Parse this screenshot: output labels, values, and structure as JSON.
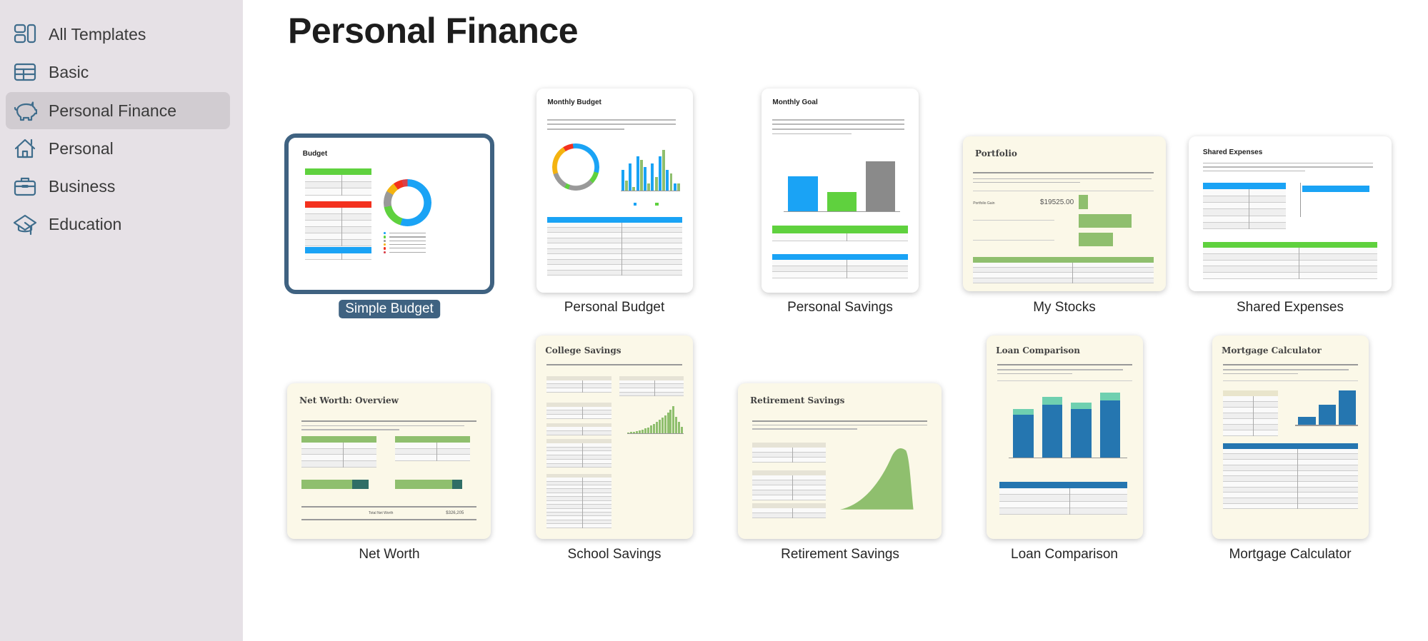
{
  "sidebar": {
    "items": [
      {
        "label": "All Templates",
        "icon": "grid-icon",
        "selected": false
      },
      {
        "label": "Basic",
        "icon": "table-icon",
        "selected": false
      },
      {
        "label": "Personal Finance",
        "icon": "piggy-bank-icon",
        "selected": true
      },
      {
        "label": "Personal",
        "icon": "house-icon",
        "selected": false
      },
      {
        "label": "Business",
        "icon": "briefcase-icon",
        "selected": false
      },
      {
        "label": "Education",
        "icon": "graduation-cap-icon",
        "selected": false
      }
    ],
    "icon_color": "#3f6d8c"
  },
  "main": {
    "title": "Personal Finance",
    "accent_color": "#3f6281",
    "templates": [
      {
        "label": "Simple Budget",
        "thumb_title": "Budget",
        "kind": "budget",
        "theme": "white",
        "selected": true
      },
      {
        "label": "Personal Budget",
        "thumb_title": "Monthly Budget",
        "kind": "monthly",
        "theme": "white",
        "selected": false
      },
      {
        "label": "Personal Savings",
        "thumb_title": "Monthly Goal",
        "kind": "goal",
        "theme": "white",
        "selected": false
      },
      {
        "label": "My Stocks",
        "thumb_title": "Portfolio",
        "kind": "portfolio",
        "theme": "cream",
        "selected": false,
        "value": "$19525.00"
      },
      {
        "label": "Shared Expenses",
        "thumb_title": "Shared Expenses",
        "kind": "shared",
        "theme": "white",
        "selected": false
      },
      {
        "label": "Net Worth",
        "thumb_title": "Net Worth: Overview",
        "kind": "networth",
        "theme": "cream",
        "selected": false,
        "total_label": "Total Net Worth",
        "value": "$326,205"
      },
      {
        "label": "School Savings",
        "thumb_title": "College Savings",
        "kind": "college",
        "theme": "cream",
        "selected": false
      },
      {
        "label": "Retirement Savings",
        "thumb_title": "Retirement Savings",
        "kind": "retirement",
        "theme": "cream",
        "selected": false
      },
      {
        "label": "Loan Comparison",
        "thumb_title": "Loan Comparison",
        "kind": "loan",
        "theme": "cream",
        "selected": false
      },
      {
        "label": "Mortgage Calculator",
        "thumb_title": "Mortgage Calculator",
        "kind": "mortgage",
        "theme": "cream",
        "selected": false
      }
    ]
  }
}
